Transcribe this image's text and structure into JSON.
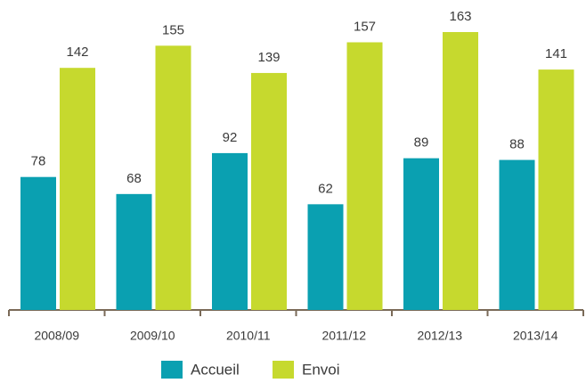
{
  "chart_data": {
    "type": "bar",
    "categories": [
      "2008/09",
      "2009/10",
      "2010/11",
      "2011/12",
      "2012/13",
      "2013/14"
    ],
    "series": [
      {
        "name": "Accueil",
        "color": "#0aa0b1",
        "values": [
          78,
          68,
          92,
          62,
          89,
          88
        ]
      },
      {
        "name": "Envoi",
        "color": "#c6d92e",
        "values": [
          142,
          155,
          139,
          157,
          163,
          141
        ]
      }
    ],
    "legend": "bottom"
  }
}
